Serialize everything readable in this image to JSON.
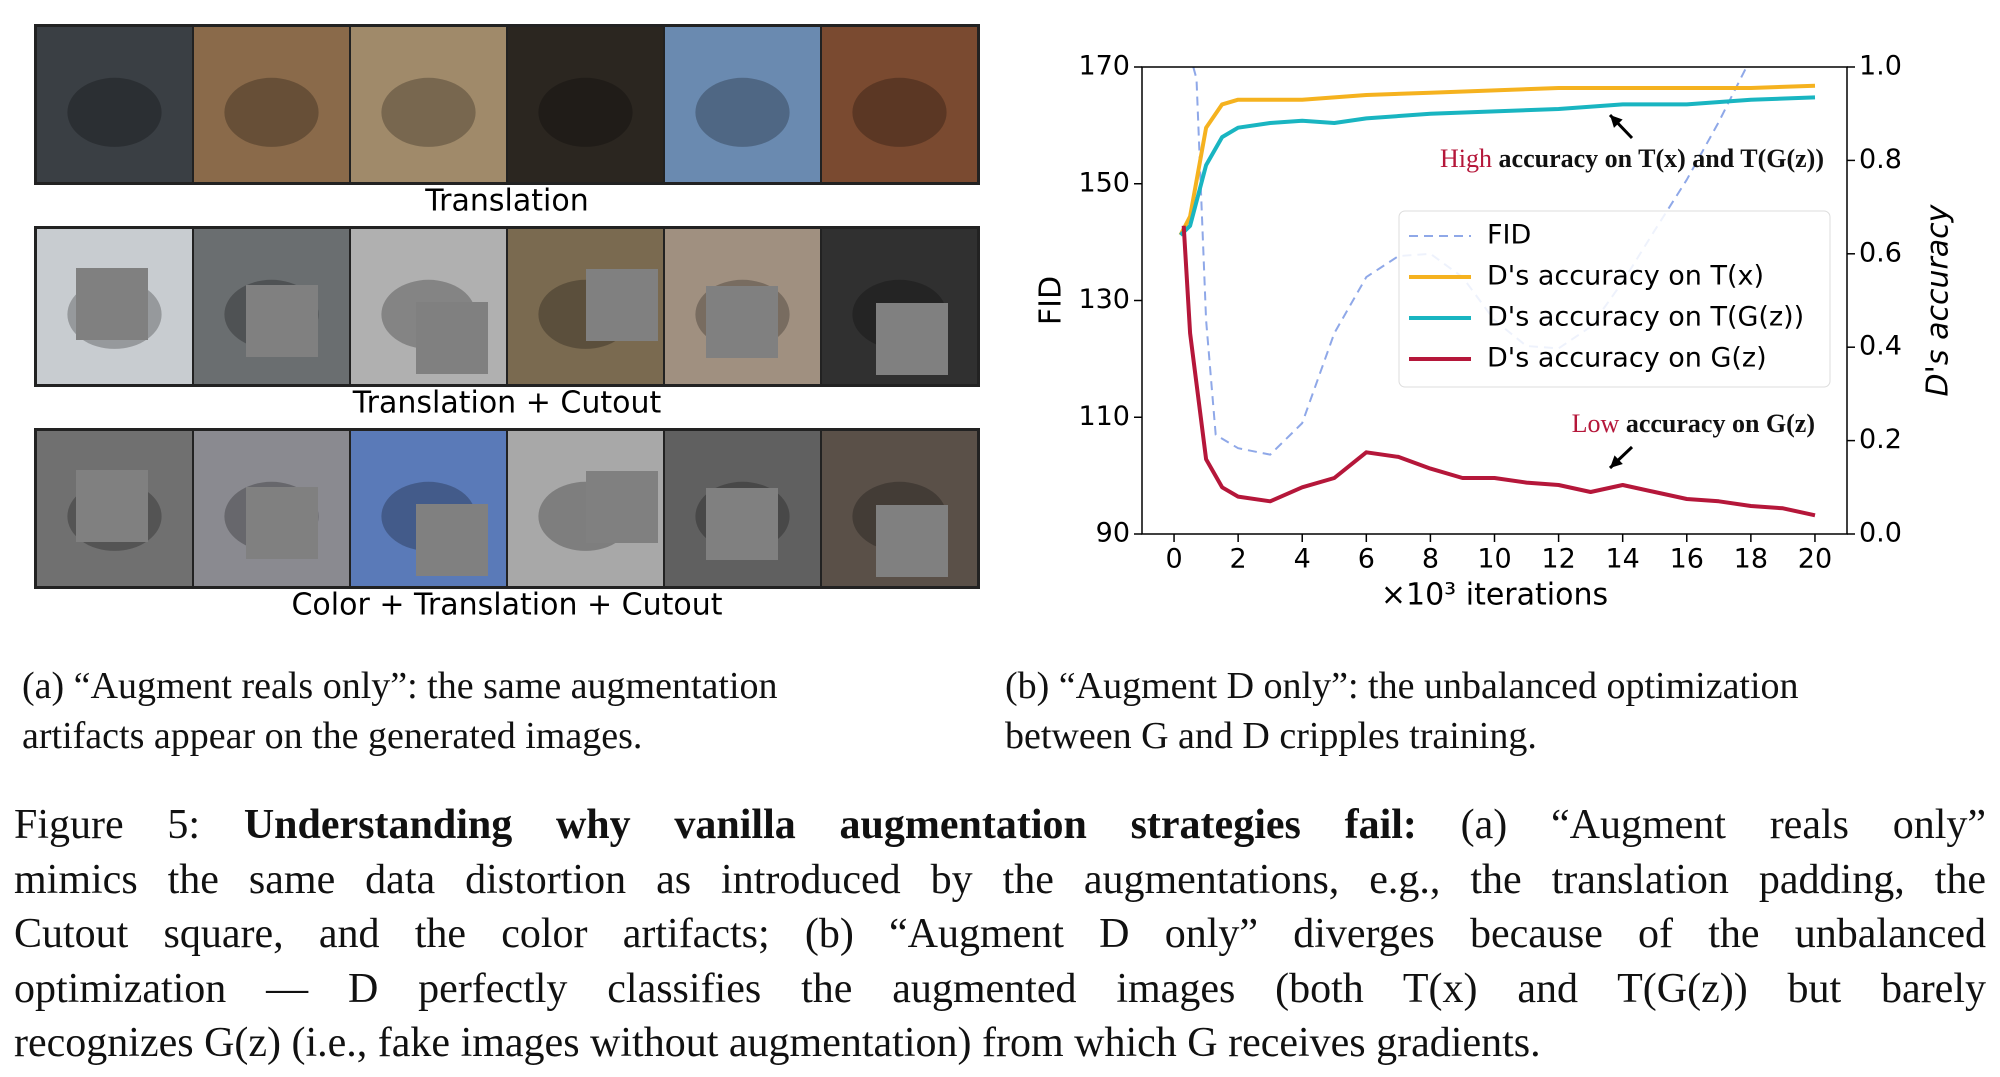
{
  "panel_a": {
    "row_labels": [
      "Translation",
      "Translation + Cutout",
      "Color + Translation + Cutout"
    ],
    "caption_lines": [
      "(a) “Augment reals only”: the same augmentation",
      "artifacts appear on the generated images."
    ]
  },
  "panel_b": {
    "caption_lines": [
      "(b) “Augment D only”: the unbalanced optimization",
      "between G and D cripples training."
    ]
  },
  "chart_data": {
    "type": "line",
    "xlabel": "×10³ iterations",
    "ylabel": "FID",
    "y2label": "D's accuracy",
    "xlim": [
      -1,
      21
    ],
    "xticks": [
      0,
      2,
      4,
      6,
      8,
      10,
      12,
      14,
      16,
      18,
      20
    ],
    "ylim": [
      90,
      170
    ],
    "yticks": [
      90,
      110,
      130,
      150,
      170
    ],
    "y2lim": [
      0,
      1
    ],
    "y2ticks": [
      {
        "value": 0,
        "label": "0.0"
      },
      {
        "value": 0.2,
        "label": "0.2"
      },
      {
        "value": 0.4,
        "label": "0.4"
      },
      {
        "value": 0.6,
        "label": "0.6"
      },
      {
        "value": 0.8,
        "label": "0.8"
      },
      {
        "value": 1,
        "label": "1.0"
      }
    ],
    "legend": "upper right",
    "series": [
      {
        "name": "FID",
        "color": "#8fa8e8",
        "dashed": true,
        "x": [
          0.6,
          0.7,
          1,
          1.3,
          2,
          3,
          4,
          5,
          6,
          7,
          8,
          9,
          10,
          11,
          12,
          13,
          14,
          15,
          16,
          17,
          18
        ],
        "values": [
          170,
          168,
          126.6,
          107,
          104.7,
          103.6,
          109,
          124.4,
          134,
          137.6,
          138,
          134,
          126.6,
          122.2,
          121.8,
          125.5,
          133.2,
          142,
          150.7,
          160.6,
          171.5
        ]
      },
      {
        "name": "D's accuracy on T(x)",
        "color": "#f5b21f",
        "axis": "y2",
        "x": [
          0.2,
          0.5,
          1,
          1.5,
          2,
          3,
          4,
          5,
          6,
          8,
          10,
          12,
          14,
          16,
          18,
          20
        ],
        "values": [
          0.64,
          0.68,
          0.87,
          0.92,
          0.93,
          0.93,
          0.93,
          0.935,
          0.94,
          0.945,
          0.95,
          0.955,
          0.955,
          0.955,
          0.955,
          0.96
        ]
      },
      {
        "name": "D's accuracy on T(G(z))",
        "color": "#19b5c1",
        "axis": "y2",
        "x": [
          0.2,
          0.5,
          1,
          1.5,
          2,
          3,
          4,
          5,
          6,
          8,
          10,
          12,
          14,
          16,
          18,
          20
        ],
        "values": [
          0.64,
          0.66,
          0.79,
          0.85,
          0.87,
          0.88,
          0.885,
          0.88,
          0.89,
          0.9,
          0.905,
          0.91,
          0.92,
          0.92,
          0.93,
          0.935
        ]
      },
      {
        "name": "D's accuracy on G(z)",
        "color": "#b5173a",
        "axis": "y2",
        "x": [
          0.3,
          0.5,
          1,
          1.5,
          2,
          3,
          4,
          5,
          6,
          7,
          8,
          9,
          10,
          11,
          12,
          13,
          14,
          15,
          16,
          17,
          18,
          19,
          20
        ],
        "values": [
          0.66,
          0.43,
          0.16,
          0.1,
          0.08,
          0.07,
          0.1,
          0.12,
          0.175,
          0.165,
          0.14,
          0.12,
          0.12,
          0.11,
          0.105,
          0.09,
          0.105,
          0.09,
          0.075,
          0.07,
          0.06,
          0.055,
          0.04
        ]
      }
    ],
    "annotations": [
      {
        "highlight": "High",
        "text": "accuracy on T(x) and T(G(z))"
      },
      {
        "highlight": "Low",
        "text": "accuracy on G(z)"
      }
    ]
  },
  "caption": {
    "label": "Figure 5:",
    "bold": "Understanding why vanilla augmentation strategies fail:",
    "first_rest": "(a) “Augment reals only”",
    "lines": [
      "mimics the same data distortion as introduced by the augmentations, e.g., the translation padding, the",
      "Cutout square, and the color artifacts; (b) “Augment D only” diverges because of the unbalanced",
      "optimization — D perfectly classifies the augmented images (both T(x) and T(G(z)) but barely",
      "recognizes G(z) (i.e., fake images without augmentation) from which G receives gradients."
    ]
  }
}
